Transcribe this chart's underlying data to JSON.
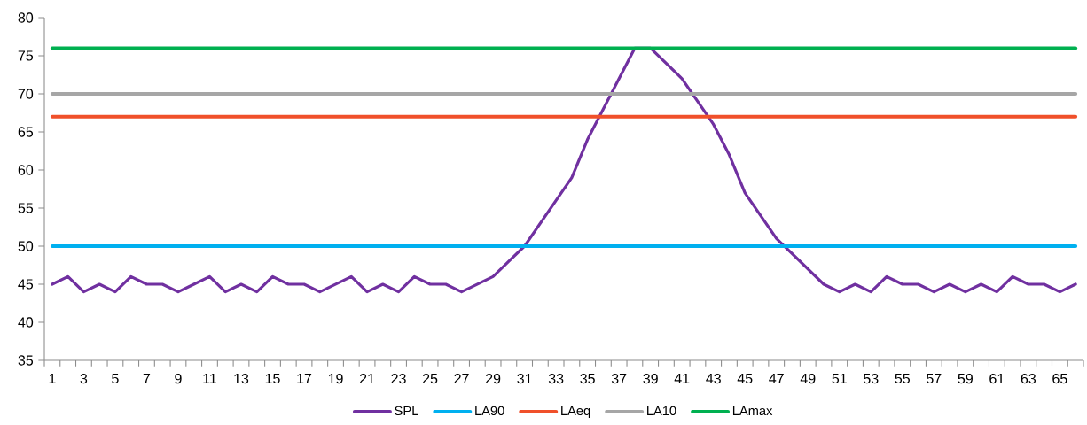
{
  "chart_data": {
    "type": "line",
    "categories": [
      "1",
      null,
      "3",
      null,
      "5",
      null,
      "7",
      null,
      "9",
      null,
      "11",
      null,
      "13",
      null,
      "15",
      null,
      "17",
      null,
      "19",
      null,
      "21",
      null,
      "23",
      null,
      "25",
      null,
      "27",
      null,
      "29",
      null,
      "31",
      null,
      "33",
      null,
      "35",
      null,
      "37",
      null,
      "39",
      null,
      "41",
      null,
      "43",
      null,
      "45",
      null,
      "47",
      null,
      "49",
      null,
      "51",
      null,
      "53",
      null,
      "55",
      null,
      "57",
      null,
      "59",
      null,
      "61",
      null,
      "63",
      null,
      "65",
      null
    ],
    "ylim": [
      35,
      80
    ],
    "yticks": [
      35,
      40,
      45,
      50,
      55,
      60,
      65,
      70,
      75,
      80
    ],
    "legend": "bottom",
    "series": [
      {
        "name": "SPL",
        "color": "#7030a0",
        "values": [
          45,
          46,
          44,
          45,
          44,
          46,
          45,
          45,
          44,
          45,
          46,
          44,
          45,
          44,
          46,
          45,
          45,
          44,
          45,
          46,
          44,
          45,
          44,
          46,
          45,
          45,
          44,
          45,
          46,
          48,
          50,
          53,
          56,
          59,
          64,
          68,
          72,
          76,
          76,
          74,
          72,
          69,
          66,
          62,
          57,
          54,
          51,
          49,
          47,
          45,
          44,
          45,
          44,
          46,
          45,
          45,
          44,
          45,
          44,
          45,
          44,
          46,
          45,
          45,
          44,
          45
        ]
      },
      {
        "name": "LA90",
        "color": "#00b0f0",
        "values": [
          50,
          50,
          50,
          50,
          50,
          50,
          50,
          50,
          50,
          50,
          50,
          50,
          50,
          50,
          50,
          50,
          50,
          50,
          50,
          50,
          50,
          50,
          50,
          50,
          50,
          50,
          50,
          50,
          50,
          50,
          50,
          50,
          50,
          50,
          50,
          50,
          50,
          50,
          50,
          50,
          50,
          50,
          50,
          50,
          50,
          50,
          50,
          50,
          50,
          50,
          50,
          50,
          50,
          50,
          50,
          50,
          50,
          50,
          50,
          50,
          50,
          50,
          50,
          50,
          50,
          50
        ]
      },
      {
        "name": "LAeq",
        "color": "#f0502a",
        "values": [
          67,
          67,
          67,
          67,
          67,
          67,
          67,
          67,
          67,
          67,
          67,
          67,
          67,
          67,
          67,
          67,
          67,
          67,
          67,
          67,
          67,
          67,
          67,
          67,
          67,
          67,
          67,
          67,
          67,
          67,
          67,
          67,
          67,
          67,
          67,
          67,
          67,
          67,
          67,
          67,
          67,
          67,
          67,
          67,
          67,
          67,
          67,
          67,
          67,
          67,
          67,
          67,
          67,
          67,
          67,
          67,
          67,
          67,
          67,
          67,
          67,
          67,
          67,
          67,
          67,
          67
        ]
      },
      {
        "name": "LA10",
        "color": "#a6a6a6",
        "values": [
          70,
          70,
          70,
          70,
          70,
          70,
          70,
          70,
          70,
          70,
          70,
          70,
          70,
          70,
          70,
          70,
          70,
          70,
          70,
          70,
          70,
          70,
          70,
          70,
          70,
          70,
          70,
          70,
          70,
          70,
          70,
          70,
          70,
          70,
          70,
          70,
          70,
          70,
          70,
          70,
          70,
          70,
          70,
          70,
          70,
          70,
          70,
          70,
          70,
          70,
          70,
          70,
          70,
          70,
          70,
          70,
          70,
          70,
          70,
          70,
          70,
          70,
          70,
          70,
          70,
          70
        ]
      },
      {
        "name": "LAmax",
        "color": "#00b050",
        "values": [
          76,
          76,
          76,
          76,
          76,
          76,
          76,
          76,
          76,
          76,
          76,
          76,
          76,
          76,
          76,
          76,
          76,
          76,
          76,
          76,
          76,
          76,
          76,
          76,
          76,
          76,
          76,
          76,
          76,
          76,
          76,
          76,
          76,
          76,
          76,
          76,
          76,
          76,
          76,
          76,
          76,
          76,
          76,
          76,
          76,
          76,
          76,
          76,
          76,
          76,
          76,
          76,
          76,
          76,
          76,
          76,
          76,
          76,
          76,
          76,
          76,
          76,
          76,
          76,
          76,
          76
        ]
      }
    ]
  }
}
